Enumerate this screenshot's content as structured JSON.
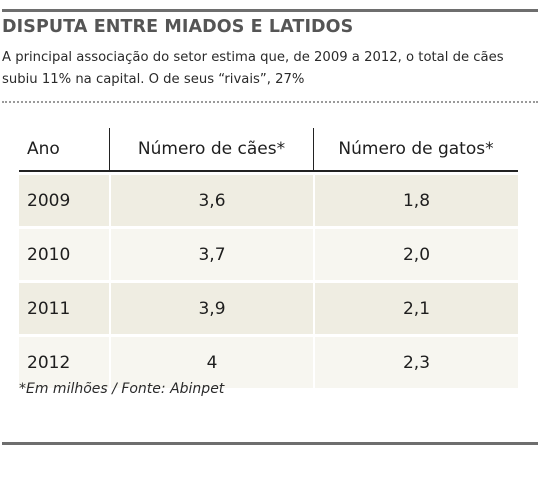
{
  "title": "DISPUTA ENTRE MIADOS E LATIDOS",
  "subtitle": "A principal associação do setor estima que, de 2009 a 2012, o total de cães subiu 11% na capital. O de seus “rivais”, 27%",
  "footnote": "*Em milhões / Fonte: Abinpet",
  "colors": {
    "rule": "#6e6e6e",
    "row_shade": "#efede2",
    "row_light": "#f7f6f0"
  },
  "chart_data": {
    "type": "table",
    "columns": [
      "Ano",
      "Número de cães*",
      "Número de gatos*"
    ],
    "rows": [
      [
        "2009",
        "3,6",
        "1,8"
      ],
      [
        "2010",
        "3,7",
        "2,0"
      ],
      [
        "2011",
        "3,9",
        "2,1"
      ],
      [
        "2012",
        "4",
        "2,3"
      ]
    ]
  }
}
